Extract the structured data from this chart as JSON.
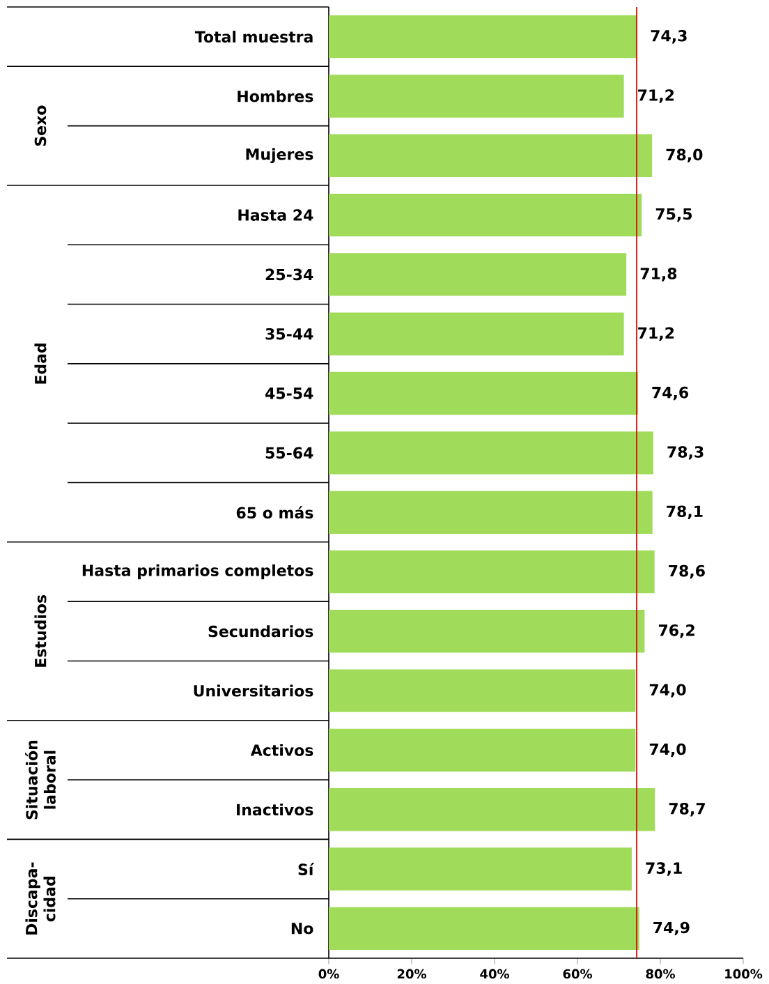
{
  "chart_data": {
    "type": "bar",
    "orientation": "horizontal",
    "categories": [
      "Total muestra",
      "Hombres",
      "Mujeres",
      "Hasta 24",
      "25-34",
      "35-44",
      "45-54",
      "55-64",
      "65 o más",
      "Hasta primarios completos",
      "Secundarios",
      "Universitarios",
      "Activos",
      "Inactivos",
      "Sí",
      "No"
    ],
    "values": [
      74.3,
      71.2,
      78.0,
      75.5,
      71.8,
      71.2,
      74.6,
      78.3,
      78.1,
      78.6,
      76.2,
      74.0,
      74.0,
      78.7,
      73.1,
      74.9
    ],
    "value_labels": [
      "74,3",
      "71,2",
      "78,0",
      "75,5",
      "71,8",
      "71,2",
      "74,6",
      "78,3",
      "78,1",
      "78,6",
      "76,2",
      "74,0",
      "74,0",
      "78,7",
      "73,1",
      "74,9"
    ],
    "color": "#a0dc5a",
    "xlim": [
      0,
      100
    ],
    "xticks": [
      {
        "value": 0,
        "label": "0%"
      },
      {
        "value": 20,
        "label": "20%"
      },
      {
        "value": 40,
        "label": "40%"
      },
      {
        "value": 60,
        "label": "60%"
      },
      {
        "value": 80,
        "label": "80%"
      },
      {
        "value": 100,
        "label": "100%"
      }
    ],
    "ref_lines": [
      {
        "axis": "x",
        "value": 74.3,
        "color": "#e00000"
      }
    ],
    "annotations": [
      "Sexo",
      "Edad",
      "Estudios",
      "Situación laboral",
      "Discapa-cidad"
    ]
  }
}
